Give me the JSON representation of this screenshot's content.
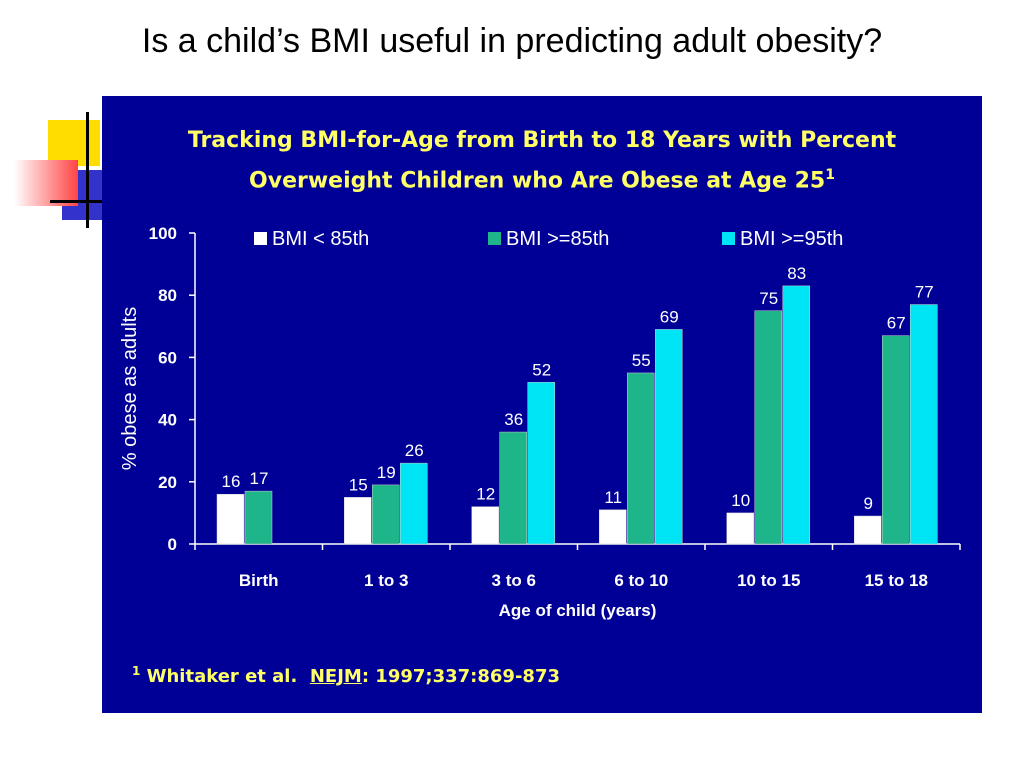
{
  "slide": {
    "title": "Is a child’s BMI useful in predicting adult obesity?"
  },
  "chart_data": {
    "type": "bar",
    "title_line1": "Tracking BMI-for-Age from Birth to 18 Years with Percent",
    "title_line2": "Overweight Children who Are Obese at Age 25",
    "title_superscript": "1",
    "xlabel": "Age of child (years)",
    "ylabel": "% obese as adults",
    "ylim": [
      0,
      100
    ],
    "yticks": [
      0,
      20,
      40,
      60,
      80,
      100
    ],
    "legend_position": "top",
    "categories": [
      "Birth",
      "1 to 3",
      "3 to 6",
      "6 to 10",
      "10 to 15",
      "15 to 18"
    ],
    "series": [
      {
        "name": "BMI < 85th",
        "color": "#ffffff",
        "values": [
          16,
          15,
          12,
          11,
          10,
          9
        ]
      },
      {
        "name": "BMI >=85th",
        "color": "#1fb58a",
        "values": [
          17,
          19,
          36,
          55,
          75,
          67
        ]
      },
      {
        "name": "BMI >=95th",
        "color": "#00e5f5",
        "values": [
          null,
          26,
          52,
          69,
          83,
          77
        ]
      }
    ],
    "background_color": "#000096",
    "heading_color": "#ffff66"
  },
  "footnote": {
    "marker": "1",
    "authors": "Whitaker et al.",
    "journal": "NEJM",
    "citation": ": 1997;337:869-873"
  },
  "colors": {
    "deco_yellow": "#ffdd00",
    "deco_blue": "#3333cc",
    "deco_red": "#ff3333"
  }
}
